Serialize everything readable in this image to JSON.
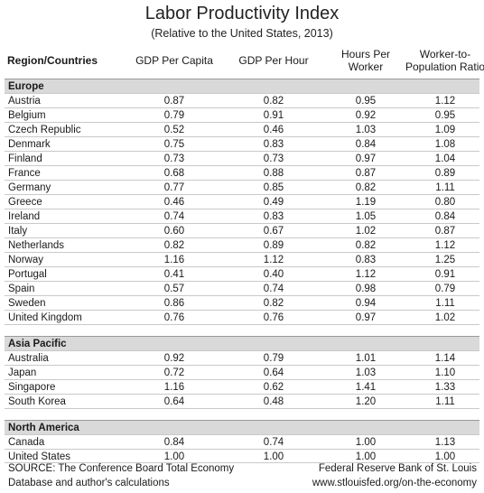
{
  "chart_data": {
    "type": "table",
    "title": "Labor Productivity Index",
    "subtitle": "(Relative to the United States, 2013)",
    "columns": [
      "Region/Countries",
      "GDP Per Capita",
      "GDP Per Hour",
      "Hours Per Worker",
      "Worker-to-Population Ratio"
    ],
    "header_lines": {
      "region": "Region/Countries",
      "gdp_capita": "GDP Per Capita",
      "gdp_hour": "GDP Per Hour",
      "hours_1": "Hours Per",
      "hours_2": "Worker",
      "wpr_1": "Worker-to-",
      "wpr_2": "Population Ratio"
    },
    "sections": [
      {
        "name": "Europe",
        "rows": [
          [
            "Austria",
            "0.87",
            "0.82",
            "0.95",
            "1.12"
          ],
          [
            "Belgium",
            "0.79",
            "0.91",
            "0.92",
            "0.95"
          ],
          [
            "Czech Republic",
            "0.52",
            "0.46",
            "1.03",
            "1.09"
          ],
          [
            "Denmark",
            "0.75",
            "0.83",
            "0.84",
            "1.08"
          ],
          [
            "Finland",
            "0.73",
            "0.73",
            "0.97",
            "1.04"
          ],
          [
            "France",
            "0.68",
            "0.88",
            "0.87",
            "0.89"
          ],
          [
            "Germany",
            "0.77",
            "0.85",
            "0.82",
            "1.11"
          ],
          [
            "Greece",
            "0.46",
            "0.49",
            "1.19",
            "0.80"
          ],
          [
            "Ireland",
            "0.74",
            "0.83",
            "1.05",
            "0.84"
          ],
          [
            "Italy",
            "0.60",
            "0.67",
            "1.02",
            "0.87"
          ],
          [
            "Netherlands",
            "0.82",
            "0.89",
            "0.82",
            "1.12"
          ],
          [
            "Norway",
            "1.16",
            "1.12",
            "0.83",
            "1.25"
          ],
          [
            "Portugal",
            "0.41",
            "0.40",
            "1.12",
            "0.91"
          ],
          [
            "Spain",
            "0.57",
            "0.74",
            "0.98",
            "0.79"
          ],
          [
            "Sweden",
            "0.86",
            "0.82",
            "0.94",
            "1.11"
          ],
          [
            "United Kingdom",
            "0.76",
            "0.76",
            "0.97",
            "1.02"
          ]
        ]
      },
      {
        "name": "Asia Pacific",
        "rows": [
          [
            "Australia",
            "0.92",
            "0.79",
            "1.01",
            "1.14"
          ],
          [
            "Japan",
            "0.72",
            "0.64",
            "1.03",
            "1.10"
          ],
          [
            "Singapore",
            "1.16",
            "0.62",
            "1.41",
            "1.33"
          ],
          [
            "South Korea",
            "0.64",
            "0.48",
            "1.20",
            "1.11"
          ]
        ]
      },
      {
        "name": "North America",
        "rows": [
          [
            "Canada",
            "0.84",
            "0.74",
            "1.00",
            "1.13"
          ],
          [
            "United States",
            "1.00",
            "1.00",
            "1.00",
            "1.00"
          ]
        ]
      }
    ]
  },
  "footer": {
    "source_line1": "SOURCE: The Conference Board Total Economy",
    "source_line2": "Database and author's calculations",
    "credit_line1": "Federal Reserve Bank of St. Louis",
    "credit_line2": "www.stlouisfed.org/on-the-economy"
  }
}
